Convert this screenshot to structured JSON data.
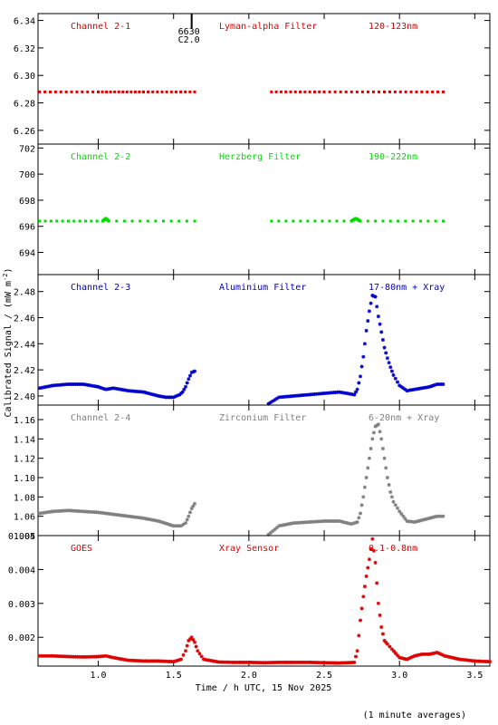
{
  "figure": {
    "ylabel": "Calibrated Signal / (mW m",
    "ylabel_sup": "-2",
    "ylabel_end": ")",
    "xlabel": "Time / h UTC, 15 Nov 2025",
    "footer": "(1 minute averages)",
    "xlim": [
      0.6,
      3.6
    ],
    "xticks": [
      1.0,
      1.5,
      2.0,
      2.5,
      3.0,
      3.5
    ],
    "xtick_labels": [
      "1.0",
      "1.5",
      "2.0",
      "2.5",
      "3.0",
      "3.5"
    ],
    "marker_annotation": [
      "6630",
      "C2.0"
    ],
    "marker_x": 1.62
  },
  "chart_data": [
    {
      "type": "scatter",
      "channel": "Channel 2-1",
      "filter": "Lyman-alpha Filter",
      "band": "120-123nm",
      "color": "#dd0000",
      "marker": "line",
      "ylim": [
        6.25,
        6.345
      ],
      "yticks": [
        6.26,
        6.28,
        6.3,
        6.32,
        6.34
      ],
      "ytick_labels": [
        "6.26",
        "6.28",
        "6.30",
        "6.32",
        "6.34"
      ],
      "segments": [
        {
          "x": [
            0.61,
            1.0,
            1.3,
            1.64
          ],
          "y": [
            6.288,
            6.288,
            6.288,
            6.288
          ]
        },
        {
          "x": [
            2.15,
            2.5,
            2.9,
            3.29
          ],
          "y": [
            6.288,
            6.288,
            6.288,
            6.288
          ]
        }
      ]
    },
    {
      "type": "scatter",
      "channel": "Channel 2-2",
      "filter": "Herzberg Filter",
      "band": "190-222nm",
      "color": "#00dd00",
      "marker": "line",
      "ylim": [
        692.3,
        702.3
      ],
      "yticks": [
        694,
        696,
        698,
        700,
        702
      ],
      "ytick_labels": [
        "694",
        "696",
        "698",
        "700",
        "702"
      ],
      "segments": [
        {
          "x": [
            0.61,
            1.03,
            1.05,
            1.07,
            1.64
          ],
          "y": [
            696.4,
            696.4,
            696.6,
            696.4,
            696.4
          ]
        },
        {
          "x": [
            2.15,
            2.68,
            2.71,
            2.74,
            3.29
          ],
          "y": [
            696.4,
            696.4,
            696.6,
            696.4,
            696.4
          ]
        }
      ]
    },
    {
      "type": "scatter",
      "channel": "Channel 2-3",
      "filter": "Aluminium Filter",
      "band": "17-80nm + Xray",
      "color": "#0000cc",
      "marker": "asterisk",
      "ylim": [
        2.393,
        2.493
      ],
      "yticks": [
        2.4,
        2.42,
        2.44,
        2.46,
        2.48
      ],
      "ytick_labels": [
        "2.40",
        "2.42",
        "2.44",
        "2.46",
        "2.48"
      ],
      "segments": [
        {
          "x": [
            0.61,
            0.7,
            0.8,
            0.9,
            1.0,
            1.05,
            1.1,
            1.2,
            1.3,
            1.4,
            1.45,
            1.5,
            1.54,
            1.56,
            1.58,
            1.6,
            1.62,
            1.64
          ],
          "y": [
            2.406,
            2.408,
            2.409,
            2.409,
            2.407,
            2.405,
            2.406,
            2.404,
            2.403,
            2.4,
            2.399,
            2.399,
            2.401,
            2.403,
            2.407,
            2.413,
            2.418,
            2.419
          ]
        },
        {
          "x": [
            2.13,
            2.2,
            2.3,
            2.4,
            2.5,
            2.6,
            2.65,
            2.7,
            2.72,
            2.74,
            2.76,
            2.78,
            2.8,
            2.82,
            2.84,
            2.86,
            2.88,
            2.9,
            2.92,
            2.94,
            2.96,
            3.0,
            3.05,
            3.1,
            3.15,
            3.2,
            3.25,
            3.29
          ],
          "y": [
            2.394,
            2.399,
            2.4,
            2.401,
            2.402,
            2.403,
            2.402,
            2.401,
            2.405,
            2.415,
            2.43,
            2.45,
            2.465,
            2.477,
            2.476,
            2.461,
            2.449,
            2.437,
            2.429,
            2.422,
            2.416,
            2.408,
            2.404,
            2.405,
            2.406,
            2.407,
            2.409,
            2.409
          ]
        }
      ]
    },
    {
      "type": "scatter",
      "channel": "Channel 2-4",
      "filter": "Zirconium Filter",
      "band": "6-20nm + Xray",
      "color": "#808080",
      "marker": "asterisk",
      "ylim": [
        1.04,
        1.175
      ],
      "yticks": [
        1.04,
        1.06,
        1.08,
        1.1,
        1.12,
        1.14,
        1.16
      ],
      "ytick_labels": [
        "1.04",
        "1.06",
        "1.08",
        "1.10",
        "1.12",
        "1.14",
        "1.16"
      ],
      "segments": [
        {
          "x": [
            0.61,
            0.7,
            0.8,
            0.9,
            1.0,
            1.1,
            1.2,
            1.3,
            1.4,
            1.5,
            1.55,
            1.58,
            1.6,
            1.62,
            1.64
          ],
          "y": [
            1.063,
            1.065,
            1.066,
            1.065,
            1.064,
            1.062,
            1.06,
            1.058,
            1.055,
            1.05,
            1.05,
            1.053,
            1.06,
            1.068,
            1.073
          ]
        },
        {
          "x": [
            2.13,
            2.2,
            2.3,
            2.4,
            2.5,
            2.6,
            2.68,
            2.72,
            2.74,
            2.76,
            2.78,
            2.8,
            2.82,
            2.84,
            2.86,
            2.88,
            2.9,
            2.92,
            2.94,
            2.96,
            3.0,
            3.05,
            3.1,
            3.15,
            3.2,
            3.25,
            3.29
          ],
          "y": [
            1.041,
            1.05,
            1.053,
            1.054,
            1.055,
            1.055,
            1.052,
            1.054,
            1.063,
            1.08,
            1.1,
            1.12,
            1.14,
            1.153,
            1.155,
            1.14,
            1.12,
            1.1,
            1.085,
            1.075,
            1.065,
            1.055,
            1.054,
            1.056,
            1.058,
            1.06,
            1.06
          ]
        }
      ]
    },
    {
      "type": "scatter",
      "channel": "GOES",
      "filter": "Xray Sensor",
      "band": "0.1-0.8nm",
      "color": "#dd0000",
      "marker": "asterisk",
      "ylim": [
        0.00115,
        0.005
      ],
      "yticks": [
        0.002,
        0.003,
        0.004,
        0.005
      ],
      "ytick_labels": [
        "0.002",
        "0.003",
        "0.004",
        "0.005"
      ],
      "segments": [
        {
          "x": [
            0.61,
            0.7,
            0.8,
            0.9,
            1.0,
            1.05,
            1.1,
            1.2,
            1.3,
            1.4,
            1.5,
            1.55,
            1.58,
            1.6,
            1.62,
            1.64,
            1.66,
            1.7,
            1.8,
            1.9,
            2.0,
            2.1,
            2.2,
            2.3,
            2.4,
            2.5,
            2.6,
            2.7,
            2.72,
            2.74,
            2.76,
            2.78,
            2.8,
            2.82,
            2.84,
            2.86,
            2.88,
            2.9,
            2.92,
            2.95,
            3.0,
            3.05,
            3.1,
            3.15,
            3.2,
            3.25,
            3.3,
            3.35,
            3.4,
            3.5,
            3.6
          ],
          "y": [
            0.00145,
            0.00145,
            0.00143,
            0.00142,
            0.00143,
            0.00145,
            0.0014,
            0.00132,
            0.0013,
            0.0013,
            0.00128,
            0.00135,
            0.0016,
            0.0019,
            0.002,
            0.00185,
            0.0016,
            0.00135,
            0.00127,
            0.00126,
            0.00126,
            0.00125,
            0.00126,
            0.00126,
            0.00126,
            0.00125,
            0.00124,
            0.00126,
            0.0016,
            0.0025,
            0.0032,
            0.0038,
            0.0043,
            0.0049,
            0.0042,
            0.003,
            0.0023,
            0.0019,
            0.0018,
            0.00165,
            0.0014,
            0.00135,
            0.00145,
            0.0015,
            0.0015,
            0.00155,
            0.00145,
            0.0014,
            0.00135,
            0.0013,
            0.00128
          ]
        }
      ]
    }
  ]
}
